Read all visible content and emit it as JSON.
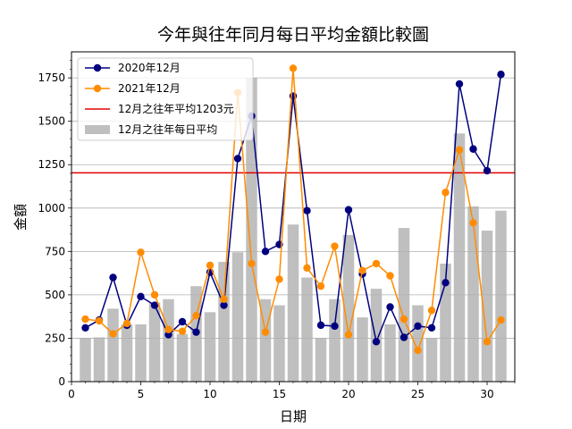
{
  "chart_data": {
    "type": "bar",
    "title": "今年與往年同月每日平均金額比較圖",
    "xlabel": "日期",
    "ylabel": "金額",
    "xlim": [
      0,
      32
    ],
    "ylim": [
      0,
      1900
    ],
    "x_ticks": [
      0,
      5,
      10,
      15,
      20,
      25,
      30
    ],
    "y_ticks": [
      0,
      250,
      500,
      750,
      1000,
      1250,
      1500,
      1750
    ],
    "grid": "horizontal",
    "legend_position": "top-left",
    "x": [
      1,
      2,
      3,
      4,
      5,
      6,
      7,
      8,
      9,
      10,
      11,
      12,
      13,
      14,
      15,
      16,
      17,
      18,
      19,
      20,
      21,
      22,
      23,
      24,
      25,
      26,
      27,
      28,
      29,
      30,
      31
    ],
    "bars": {
      "name": "12月之往年每日平均",
      "color": "#bfbfbf",
      "values": [
        250,
        255,
        420,
        330,
        330,
        455,
        475,
        275,
        550,
        400,
        690,
        745,
        1750,
        475,
        440,
        905,
        600,
        250,
        475,
        845,
        370,
        535,
        330,
        885,
        440,
        250,
        680,
        1430,
        1010,
        870,
        985
      ]
    },
    "series": [
      {
        "name": "2020年12月",
        "color": "#000080",
        "values": [
          310,
          355,
          600,
          325,
          490,
          440,
          270,
          345,
          285,
          630,
          440,
          1285,
          1530,
          750,
          790,
          1645,
          985,
          325,
          320,
          990,
          620,
          230,
          430,
          255,
          320,
          310,
          570,
          1715,
          1340,
          1215,
          1770
        ]
      },
      {
        "name": "2021年12月",
        "color": "#ff8c00",
        "values": [
          360,
          350,
          275,
          335,
          745,
          500,
          300,
          290,
          380,
          670,
          475,
          1665,
          680,
          285,
          590,
          1805,
          655,
          550,
          780,
          270,
          640,
          680,
          610,
          360,
          180,
          410,
          1090,
          1335,
          915,
          230,
          355
        ]
      }
    ],
    "reference_line": {
      "name": "12月之往年平均1203元",
      "value": 1203,
      "color": "#e00000"
    }
  }
}
